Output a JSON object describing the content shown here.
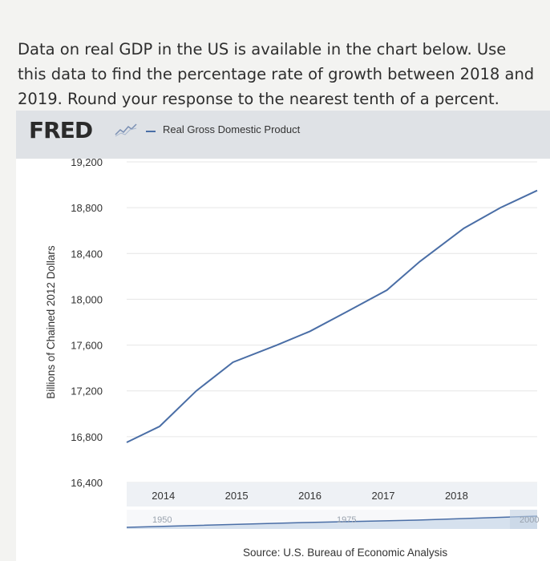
{
  "question": "Data on real GDP in the US is available in the chart below. Use this data to find the percentage rate of growth between 2018 and 2019. Round your response to the nearest tenth of a percent.",
  "fred": {
    "logo_text": "FRED",
    "legend_label": "Real Gross Domestic Product",
    "source": "Source: U.S. Bureau of Economic Analysis"
  },
  "colors": {
    "series": "#4a6ea6",
    "header": "#dfe2e6",
    "grid": "#e6e6e6",
    "navigator_band": "#d6e1ee"
  },
  "chart_data": {
    "type": "line",
    "title": "",
    "xlabel": "",
    "ylabel": "Billions of Chained 2012 Dollars",
    "y_ticks": [
      "19,200",
      "18,800",
      "18,400",
      "18,000",
      "17,600",
      "17,200",
      "16,800",
      "16,400"
    ],
    "y_tick_values": [
      19200,
      18800,
      18400,
      18000,
      17600,
      17200,
      16800,
      16400
    ],
    "x_ticks": [
      "2014",
      "2015",
      "2016",
      "2017",
      "2018"
    ],
    "x_tick_values": [
      2014,
      2015,
      2016,
      2017,
      2018
    ],
    "ylim": [
      16400,
      19200
    ],
    "xlim": [
      2013.5,
      2019.1
    ],
    "grid": true,
    "legend": "top-left",
    "series": [
      {
        "name": "Real Gross Domestic Product",
        "x": [
          2013.5,
          2013.95,
          2014.45,
          2014.95,
          2015.55,
          2016.0,
          2016.5,
          2017.05,
          2017.5,
          2018.1,
          2018.6,
          2019.1
        ],
        "y": [
          16750,
          16890,
          17200,
          17450,
          17600,
          17720,
          17890,
          18080,
          18330,
          18620,
          18800,
          18950
        ]
      }
    ],
    "navigator": {
      "labels": [
        "1950",
        "1975",
        "2000"
      ]
    }
  }
}
